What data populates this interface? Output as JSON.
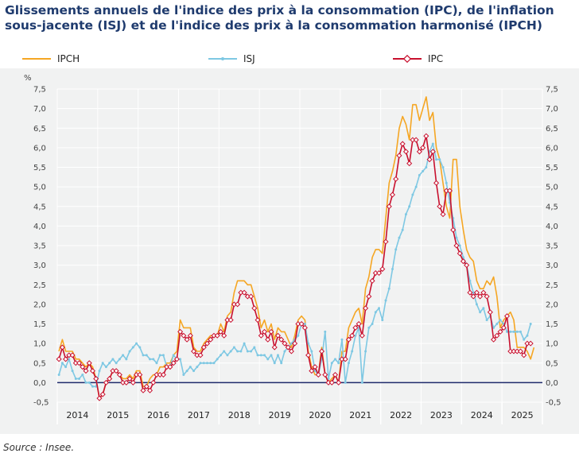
{
  "title": "Glissements annuels de l'indice des prix à la consommation (IPC), de l'inflation sous-jacente (ISJ) et de l'indice des prix à la consommation harmonisé (IPCH)",
  "source": "Source : Insee.",
  "colors": {
    "ipch": "#f5a623",
    "isj": "#7ec8e3",
    "ipc": "#c8102e",
    "zero_line": "#1f2a6b",
    "grid": "#ffffff",
    "plot_bg": "#f1f2f2"
  },
  "chart_data": {
    "type": "line",
    "ylabel": "%",
    "ylim": [
      -0.5,
      7.5
    ],
    "yticks": [
      "-0,5",
      "0,0",
      "0,5",
      "1,0",
      "1,5",
      "2,0",
      "2,5",
      "3,0",
      "3,5",
      "4,0",
      "4,5",
      "5,0",
      "5,5",
      "6,0",
      "6,5",
      "7,0",
      "7,5"
    ],
    "years": [
      "2014",
      "2015",
      "2016",
      "2017",
      "2018",
      "2019",
      "2020",
      "2021",
      "2022",
      "2023",
      "2024",
      "2025"
    ],
    "x_start": "2014-01",
    "legend": [
      "IPCH",
      "ISJ",
      "IPC"
    ],
    "grid": true,
    "legend_position": "top",
    "series": [
      {
        "name": "IPCH",
        "values": [
          0.8,
          1.1,
          0.8,
          0.8,
          0.8,
          0.6,
          0.6,
          0.5,
          0.4,
          0.5,
          0.4,
          0.1,
          -0.4,
          -0.3,
          0.0,
          0.1,
          0.3,
          0.3,
          0.2,
          0.1,
          0.1,
          0.2,
          0.1,
          0.3,
          0.3,
          -0.1,
          -0.1,
          0.1,
          0.2,
          0.2,
          0.4,
          0.4,
          0.5,
          0.5,
          0.7,
          0.8,
          1.6,
          1.4,
          1.4,
          1.4,
          0.9,
          0.8,
          0.8,
          1.0,
          1.1,
          1.2,
          1.2,
          1.2,
          1.5,
          1.3,
          1.7,
          1.8,
          2.3,
          2.6,
          2.6,
          2.6,
          2.5,
          2.5,
          2.2,
          1.9,
          1.4,
          1.6,
          1.3,
          1.5,
          1.1,
          1.4,
          1.3,
          1.3,
          1.1,
          0.9,
          1.2,
          1.6,
          1.7,
          1.6,
          0.8,
          0.4,
          0.2,
          0.2,
          0.9,
          0.2,
          0.0,
          0.1,
          0.2,
          0.0,
          0.8,
          0.8,
          1.4,
          1.6,
          1.8,
          1.9,
          1.5,
          2.4,
          2.7,
          3.2,
          3.4,
          3.4,
          3.3,
          4.2,
          5.1,
          5.4,
          5.8,
          6.5,
          6.8,
          6.6,
          6.2,
          7.1,
          7.1,
          6.7,
          7.0,
          7.3,
          6.7,
          6.9,
          6.0,
          5.7,
          5.1,
          4.5,
          4.2,
          5.7,
          5.7,
          4.5,
          3.9,
          3.4,
          3.2,
          3.1,
          2.6,
          2.4,
          2.4,
          2.6,
          2.5,
          2.7,
          2.2,
          1.4,
          1.6,
          1.7,
          1.8,
          1.6,
          0.9,
          0.9,
          0.9,
          0.8,
          0.6,
          0.9
        ]
      },
      {
        "name": "ISJ",
        "values": [
          0.2,
          0.5,
          0.4,
          0.6,
          0.3,
          0.1,
          0.1,
          0.2,
          0.0,
          0.0,
          -0.1,
          -0.1,
          0.3,
          0.5,
          0.4,
          0.5,
          0.6,
          0.5,
          0.6,
          0.7,
          0.6,
          0.8,
          0.9,
          1.0,
          0.9,
          0.7,
          0.7,
          0.6,
          0.6,
          0.5,
          0.7,
          0.7,
          0.4,
          0.4,
          0.7,
          0.6,
          0.6,
          0.2,
          0.3,
          0.4,
          0.3,
          0.4,
          0.5,
          0.5,
          0.5,
          0.5,
          0.5,
          0.6,
          0.7,
          0.8,
          0.7,
          0.8,
          0.9,
          0.8,
          0.8,
          1.0,
          0.8,
          0.8,
          0.9,
          0.7,
          0.7,
          0.7,
          0.6,
          0.7,
          0.5,
          0.7,
          0.5,
          0.8,
          0.9,
          1.0,
          1.1,
          1.2,
          1.5,
          1.5,
          1.0,
          0.8,
          0.3,
          0.2,
          0.6,
          1.3,
          0.1,
          0.5,
          0.6,
          0.5,
          1.1,
          0.0,
          0.5,
          0.8,
          1.2,
          1.4,
          0.0,
          0.8,
          1.4,
          1.5,
          1.8,
          1.9,
          1.6,
          2.1,
          2.4,
          2.9,
          3.4,
          3.7,
          3.9,
          4.3,
          4.5,
          4.8,
          5.0,
          5.3,
          5.4,
          5.5,
          5.9,
          6.1,
          5.7,
          5.7,
          5.5,
          5.1,
          4.6,
          4.2,
          3.7,
          3.5,
          3.2,
          3.0,
          2.6,
          2.3,
          2.0,
          1.8,
          1.9,
          1.6,
          1.7,
          1.4,
          1.5,
          1.6,
          1.5,
          1.3,
          1.3,
          1.3,
          1.3,
          1.3,
          1.1,
          1.2,
          1.5
        ]
      },
      {
        "name": "IPC",
        "values": [
          0.6,
          0.9,
          0.6,
          0.7,
          0.7,
          0.5,
          0.5,
          0.4,
          0.3,
          0.5,
          0.3,
          0.1,
          -0.4,
          -0.3,
          0.0,
          0.1,
          0.3,
          0.3,
          0.2,
          0.0,
          0.0,
          0.1,
          0.0,
          0.2,
          0.2,
          -0.2,
          -0.1,
          -0.2,
          0.0,
          0.2,
          0.2,
          0.2,
          0.4,
          0.4,
          0.5,
          0.6,
          1.3,
          1.2,
          1.1,
          1.2,
          0.8,
          0.7,
          0.7,
          0.9,
          1.0,
          1.1,
          1.2,
          1.2,
          1.3,
          1.2,
          1.6,
          1.6,
          2.0,
          2.0,
          2.3,
          2.3,
          2.2,
          2.2,
          1.9,
          1.6,
          1.2,
          1.3,
          1.1,
          1.3,
          0.9,
          1.2,
          1.1,
          1.0,
          0.9,
          0.8,
          1.0,
          1.5,
          1.5,
          1.4,
          0.7,
          0.3,
          0.4,
          0.2,
          0.8,
          0.2,
          0.0,
          0.0,
          0.2,
          0.0,
          0.6,
          0.6,
          1.1,
          1.2,
          1.4,
          1.5,
          1.2,
          1.9,
          2.2,
          2.6,
          2.8,
          2.8,
          2.9,
          3.6,
          4.5,
          4.8,
          5.2,
          5.8,
          6.1,
          5.9,
          5.6,
          6.2,
          6.2,
          5.9,
          6.0,
          6.3,
          5.7,
          5.9,
          5.1,
          4.5,
          4.3,
          4.9,
          4.9,
          3.9,
          3.5,
          3.3,
          3.1,
          3.0,
          2.3,
          2.2,
          2.3,
          2.2,
          2.3,
          2.2,
          1.8,
          1.1,
          1.2,
          1.3,
          1.4,
          1.7,
          0.8,
          0.8,
          0.8,
          0.8,
          0.7,
          1.0,
          1.0
        ]
      }
    ]
  }
}
